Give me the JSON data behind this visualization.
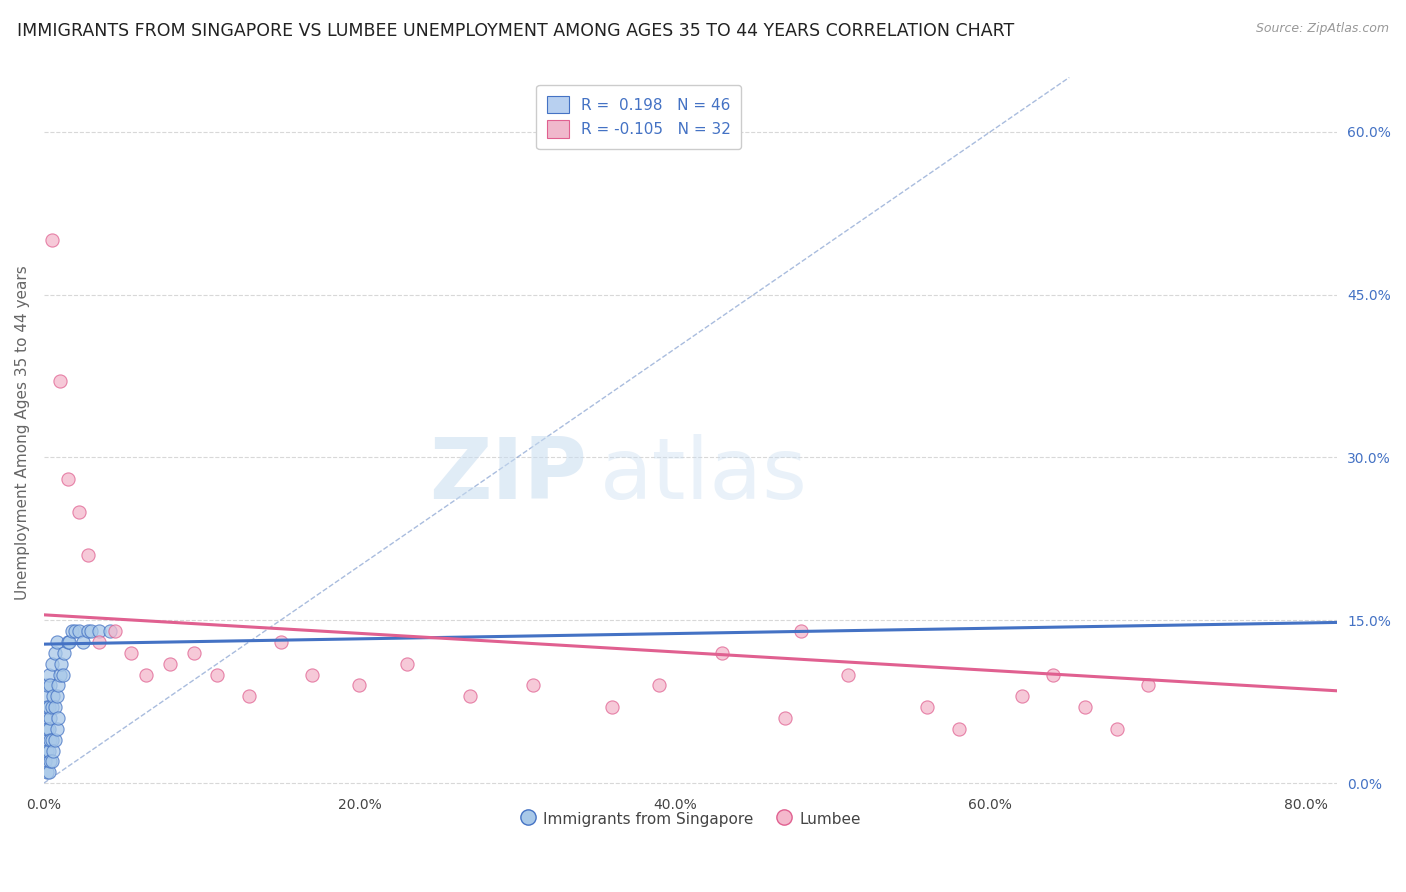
{
  "title": "IMMIGRANTS FROM SINGAPORE VS LUMBEE UNEMPLOYMENT AMONG AGES 35 TO 44 YEARS CORRELATION CHART",
  "source": "Source: ZipAtlas.com",
  "ylabel": "Unemployment Among Ages 35 to 44 years",
  "x_ticks": [
    0.0,
    0.2,
    0.4,
    0.6,
    0.8
  ],
  "x_tick_labels": [
    "0.0%",
    "20.0%",
    "40.0%",
    "60.0%",
    "80.0%"
  ],
  "y_ticks_right": [
    0.0,
    0.15,
    0.3,
    0.45,
    0.6
  ],
  "y_tick_labels_right": [
    "0.0%",
    "15.0%",
    "30.0%",
    "45.0%",
    "60.0%"
  ],
  "xlim": [
    0.0,
    0.82
  ],
  "ylim": [
    -0.005,
    0.65
  ],
  "legend_labels_bottom": [
    "Immigrants from Singapore",
    "Lumbee"
  ],
  "watermark_zip": "ZIP",
  "watermark_atlas": "atlas",
  "blue_scatter_x": [
    0.001,
    0.001,
    0.001,
    0.001,
    0.002,
    0.002,
    0.002,
    0.002,
    0.002,
    0.003,
    0.003,
    0.003,
    0.003,
    0.003,
    0.004,
    0.004,
    0.004,
    0.004,
    0.005,
    0.005,
    0.005,
    0.005,
    0.006,
    0.006,
    0.007,
    0.007,
    0.007,
    0.008,
    0.008,
    0.008,
    0.009,
    0.009,
    0.01,
    0.011,
    0.012,
    0.013,
    0.015,
    0.016,
    0.018,
    0.02,
    0.022,
    0.025,
    0.028,
    0.03,
    0.035,
    0.042
  ],
  "blue_scatter_y": [
    0.02,
    0.04,
    0.06,
    0.08,
    0.01,
    0.03,
    0.05,
    0.07,
    0.09,
    0.01,
    0.03,
    0.05,
    0.07,
    0.1,
    0.02,
    0.04,
    0.06,
    0.09,
    0.02,
    0.04,
    0.07,
    0.11,
    0.03,
    0.08,
    0.04,
    0.07,
    0.12,
    0.05,
    0.08,
    0.13,
    0.06,
    0.09,
    0.1,
    0.11,
    0.1,
    0.12,
    0.13,
    0.13,
    0.14,
    0.14,
    0.14,
    0.13,
    0.14,
    0.14,
    0.14,
    0.14
  ],
  "pink_scatter_x": [
    0.005,
    0.01,
    0.015,
    0.022,
    0.028,
    0.035,
    0.045,
    0.055,
    0.065,
    0.08,
    0.095,
    0.11,
    0.13,
    0.15,
    0.17,
    0.2,
    0.23,
    0.27,
    0.31,
    0.36,
    0.39,
    0.43,
    0.47,
    0.48,
    0.51,
    0.56,
    0.58,
    0.62,
    0.64,
    0.66,
    0.68,
    0.7
  ],
  "pink_scatter_y": [
    0.5,
    0.37,
    0.28,
    0.25,
    0.21,
    0.13,
    0.14,
    0.12,
    0.1,
    0.11,
    0.12,
    0.1,
    0.08,
    0.13,
    0.1,
    0.09,
    0.11,
    0.08,
    0.09,
    0.07,
    0.09,
    0.12,
    0.06,
    0.14,
    0.1,
    0.07,
    0.05,
    0.08,
    0.1,
    0.07,
    0.05,
    0.09
  ],
  "blue_line_x": [
    0.0,
    0.82
  ],
  "blue_line_y": [
    0.128,
    0.148
  ],
  "pink_line_x": [
    0.0,
    0.82
  ],
  "pink_line_y": [
    0.155,
    0.085
  ],
  "diagonal_line_x": [
    0.0,
    0.65
  ],
  "diagonal_line_y": [
    0.0,
    0.65
  ],
  "grid_color": "#d8d8d8",
  "title_color": "#222222",
  "title_fontsize": 12.5,
  "right_tick_color": "#4472c4",
  "scatter_blue_color": "#a8c8e8",
  "scatter_blue_edge": "#4472c4",
  "scatter_pink_color": "#f4b8cc",
  "scatter_pink_edge": "#e06090",
  "trendline_blue_color": "#4472c4",
  "trendline_pink_color": "#e06090",
  "diagonal_color": "#7090c8",
  "background_color": "#ffffff",
  "legend_blue_patch_color": "#b8d0f0",
  "legend_pink_patch_color": "#f0b8cc"
}
